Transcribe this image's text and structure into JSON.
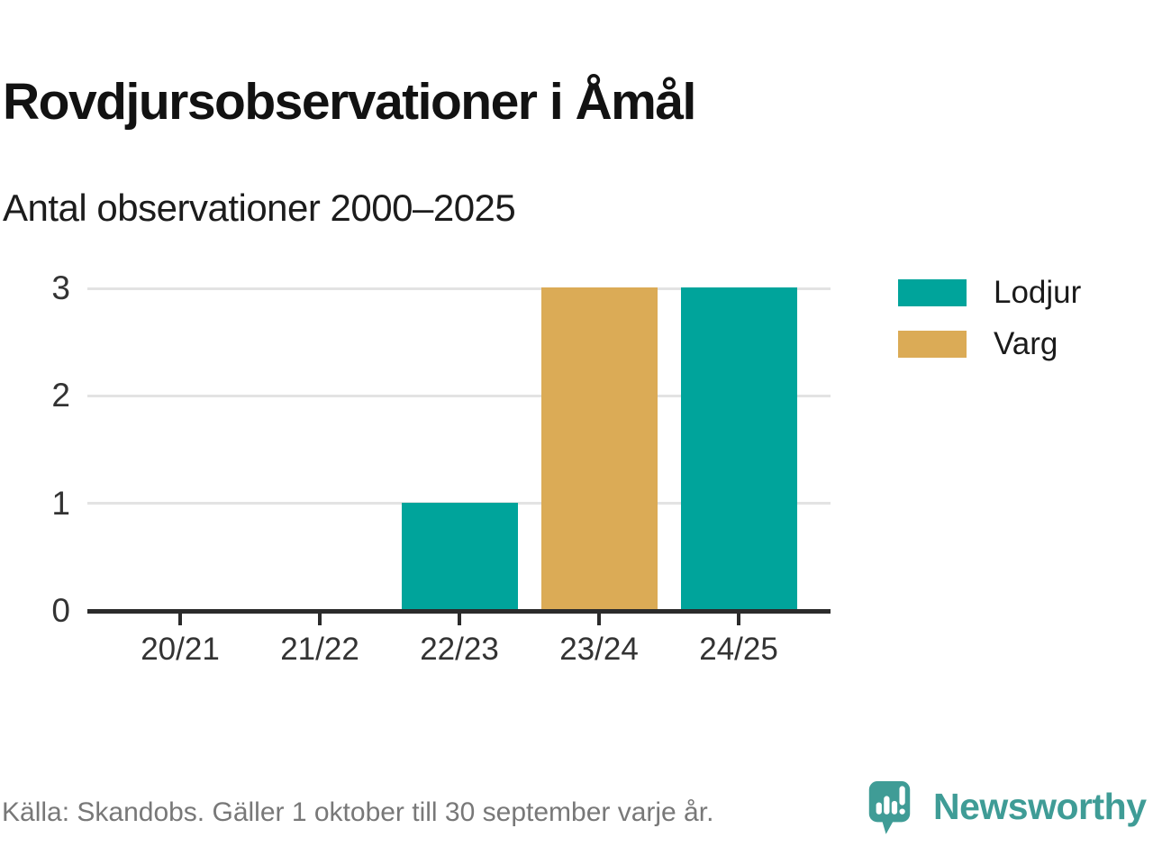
{
  "header": {
    "title": "Rovdjursobservationer i Åmål",
    "subtitle": "Antal observationer 2000–2025"
  },
  "chart_data": {
    "type": "bar",
    "title": "Rovdjursobservationer i Åmål",
    "subtitle": "Antal observationer 2000–2025",
    "categories": [
      "20/21",
      "21/22",
      "22/23",
      "23/24",
      "24/25"
    ],
    "series": [
      {
        "name": "Lodjur",
        "color": "#00a49b",
        "values": [
          0,
          0,
          1,
          0,
          3
        ]
      },
      {
        "name": "Varg",
        "color": "#dbab56",
        "values": [
          0,
          0,
          0,
          3,
          0
        ]
      }
    ],
    "ylim": [
      0,
      3
    ],
    "yticks": [
      0,
      1,
      2,
      3
    ],
    "grid": "horizontal",
    "legend_position": "right",
    "xlabel": "",
    "ylabel": ""
  },
  "legend": {
    "items": [
      {
        "label": "Lodjur",
        "color": "#00a49b"
      },
      {
        "label": "Varg",
        "color": "#dbab56"
      }
    ]
  },
  "footer": {
    "source": "Källa: Skandobs. Gäller 1 oktober till 30 september varje år.",
    "brand": "Newsworthy"
  },
  "colors": {
    "teal": "#00a49b",
    "gold": "#dbab56",
    "axis": "#2b2b2b",
    "grid": "#e3e3e3",
    "tick_text": "#333333",
    "brand_teal": "#3f9c96",
    "footer_text": "#787878"
  }
}
